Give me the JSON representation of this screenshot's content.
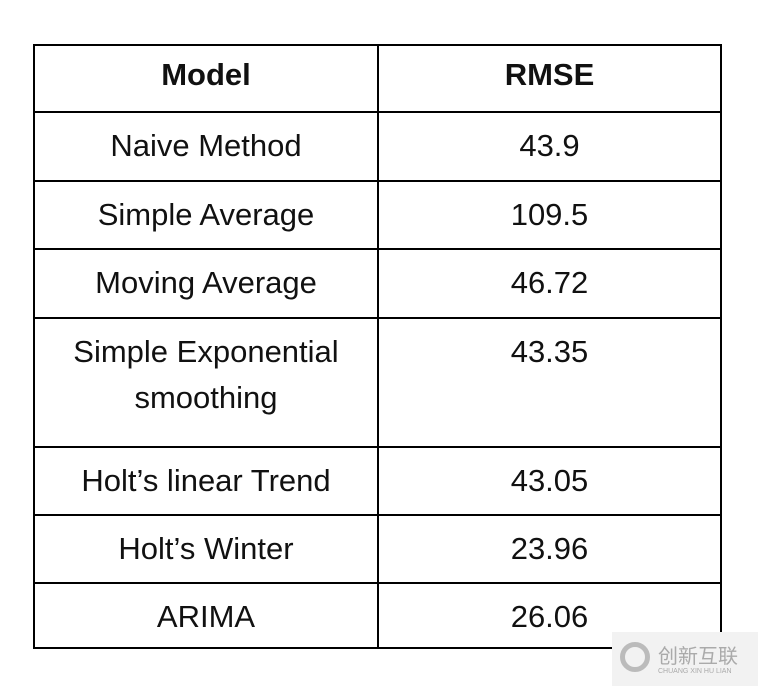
{
  "table": {
    "header": [
      "Model",
      "RMSE"
    ],
    "rows": [
      [
        "Naive Method",
        "43.9"
      ],
      [
        "Simple Average",
        "109.5"
      ],
      [
        "Moving Average",
        "46.72"
      ],
      [
        "Simple Exponential smoothing",
        "43.35"
      ],
      [
        "Holt’s linear Trend",
        "43.05"
      ],
      [
        "Holt’s Winter",
        "23.96"
      ],
      [
        "ARIMA",
        "26.06"
      ]
    ]
  },
  "watermark": {
    "title": "创新互联",
    "subtitle": "CHUANG XIN HU LIAN"
  }
}
